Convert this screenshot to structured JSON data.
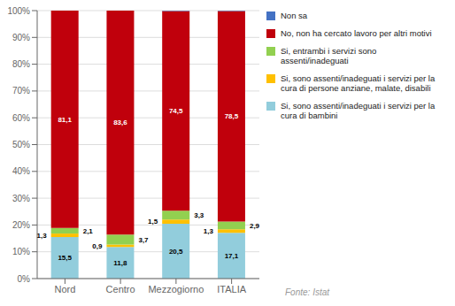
{
  "chart_data": {
    "type": "bar",
    "stacked": true,
    "grid": true,
    "data_labels": true,
    "categories": [
      "Nord",
      "Centro",
      "Mezzogiorno",
      "ITALIA"
    ],
    "series": [
      {
        "name": "Si, sono assenti/inadeguati i servizi per la\ncura di bambini",
        "color": "#92CDDC",
        "values": [
          15.5,
          11.8,
          20.5,
          17.1
        ],
        "value_labels": [
          "15,5",
          "11,8",
          "20,5",
          "17,1"
        ]
      },
      {
        "name": "Si, sono assenti/inadeguati i servizi per la\ncura di persone anziane, malate, disabili",
        "color": "#FFC000",
        "values": [
          1.3,
          0.9,
          1.5,
          1.3
        ],
        "value_labels": [
          "1,3",
          "0,9",
          "1,5",
          "1,3"
        ]
      },
      {
        "name": "Si, entrambi i servizi sono\nassenti/inadeguati",
        "color": "#92D050",
        "values": [
          2.1,
          3.7,
          3.3,
          2.9
        ],
        "value_labels": [
          "2,1",
          "3,7",
          "3,3",
          "2,9"
        ]
      },
      {
        "name": "No, non ha cercato lavoro per altri motivi",
        "color": "#C0000C",
        "values": [
          81.1,
          83.6,
          74.5,
          78.5
        ],
        "value_labels": [
          "81,1",
          "83,6",
          "74,5",
          "78,5"
        ]
      },
      {
        "name": "Non sa",
        "color": "#4472C4",
        "values": [
          0.0,
          0.0,
          0.2,
          0.2
        ]
      }
    ],
    "ylim": [
      0,
      100
    ],
    "yticks": [
      {
        "value": 0,
        "label": "0%"
      },
      {
        "value": 10,
        "label": "10%"
      },
      {
        "value": 20,
        "label": "20%"
      },
      {
        "value": 30,
        "label": "30%"
      },
      {
        "value": 40,
        "label": "40%"
      },
      {
        "value": 50,
        "label": "50%"
      },
      {
        "value": 60,
        "label": "60%"
      },
      {
        "value": 70,
        "label": "70%"
      },
      {
        "value": 80,
        "label": "80%"
      },
      {
        "value": 90,
        "label": "90%"
      },
      {
        "value": 100,
        "label": "100%"
      }
    ],
    "annotations": [
      "Fonte: Istat"
    ]
  }
}
